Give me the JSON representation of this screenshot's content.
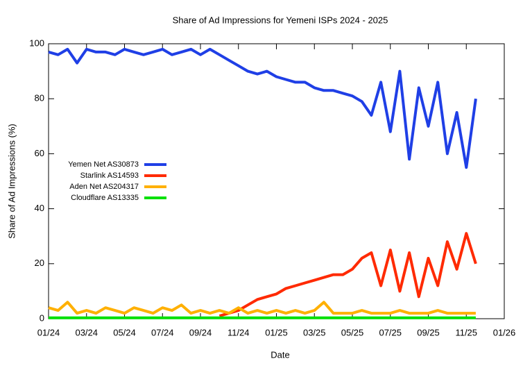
{
  "chart_data": {
    "type": "line",
    "title": "Share of Ad Impressions for Yemeni ISPs 2024 - 2025",
    "x_label": "Date",
    "y_label": "Share of Ad Impressions (%)",
    "x": [
      0,
      0.5,
      1,
      1.5,
      2,
      2.5,
      3,
      3.5,
      4,
      4.5,
      5,
      5.5,
      6,
      6.5,
      7,
      7.5,
      8,
      8.5,
      9,
      9.5,
      10,
      10.5,
      11,
      11.5,
      12,
      12.5,
      13,
      13.5,
      14,
      14.5,
      15,
      15.5,
      16,
      16.5,
      17,
      17.5,
      18,
      18.5,
      19,
      19.5,
      20,
      20.5,
      21,
      21.5,
      22,
      22.5
    ],
    "xlim": [
      0,
      24
    ],
    "xticks": [
      {
        "value": 0,
        "label": "01/24"
      },
      {
        "value": 2,
        "label": "03/24"
      },
      {
        "value": 4,
        "label": "05/24"
      },
      {
        "value": 6,
        "label": "07/24"
      },
      {
        "value": 8,
        "label": "09/24"
      },
      {
        "value": 10,
        "label": "11/24"
      },
      {
        "value": 12,
        "label": "01/25"
      },
      {
        "value": 14,
        "label": "03/25"
      },
      {
        "value": 16,
        "label": "05/25"
      },
      {
        "value": 18,
        "label": "07/25"
      },
      {
        "value": 20,
        "label": "09/25"
      },
      {
        "value": 22,
        "label": "11/25"
      },
      {
        "value": 24,
        "label": "01/26"
      }
    ],
    "ylim": [
      0,
      100
    ],
    "yticks": [
      0,
      20,
      40,
      60,
      80,
      100
    ],
    "legend": "left",
    "series": [
      {
        "name": "Yemen Net AS30873",
        "color": "#1f3fe6",
        "values": [
          97,
          96,
          98,
          93,
          98,
          97,
          97,
          96,
          98,
          97,
          96,
          97,
          98,
          96,
          97,
          98,
          96,
          98,
          96,
          94,
          92,
          90,
          89,
          90,
          88,
          87,
          86,
          86,
          84,
          83,
          83,
          82,
          81,
          79,
          74,
          86,
          68,
          90,
          58,
          84,
          70,
          86,
          60,
          75,
          55,
          80
        ]
      },
      {
        "name": "Starlink AS14593",
        "color": "#ff2a00",
        "values": [
          null,
          null,
          null,
          null,
          null,
          null,
          null,
          null,
          null,
          null,
          null,
          null,
          null,
          null,
          null,
          null,
          null,
          null,
          1,
          2,
          3,
          5,
          7,
          8,
          9,
          11,
          12,
          13,
          14,
          15,
          16,
          16,
          18,
          22,
          24,
          12,
          25,
          10,
          24,
          8,
          22,
          12,
          28,
          18,
          31,
          20
        ]
      },
      {
        "name": "Aden Net AS204317",
        "color": "#ffb000",
        "values": [
          4,
          3,
          6,
          2,
          3,
          2,
          4,
          3,
          2,
          4,
          3,
          2,
          4,
          3,
          5,
          2,
          3,
          2,
          3,
          2,
          4,
          2,
          3,
          2,
          3,
          2,
          3,
          2,
          3,
          6,
          2,
          2,
          2,
          3,
          2,
          2,
          2,
          3,
          2,
          2,
          2,
          3,
          2,
          2,
          2,
          2
        ]
      },
      {
        "name": "Cloudflare AS13335",
        "color": "#00e000",
        "values": [
          0.3,
          0.3,
          0.3,
          0.3,
          0.3,
          0.3,
          0.3,
          0.3,
          0.3,
          0.3,
          0.3,
          0.3,
          0.3,
          0.3,
          0.3,
          0.3,
          0.3,
          0.3,
          0.3,
          0.3,
          0.3,
          0.3,
          0.3,
          0.3,
          0.3,
          0.3,
          0.3,
          0.3,
          0.3,
          0.3,
          0.3,
          0.3,
          0.3,
          0.3,
          0.3,
          0.3,
          0.3,
          0.3,
          0.3,
          0.3,
          0.3,
          0.3,
          0.3,
          0.3,
          0.3,
          0.3
        ]
      }
    ]
  }
}
